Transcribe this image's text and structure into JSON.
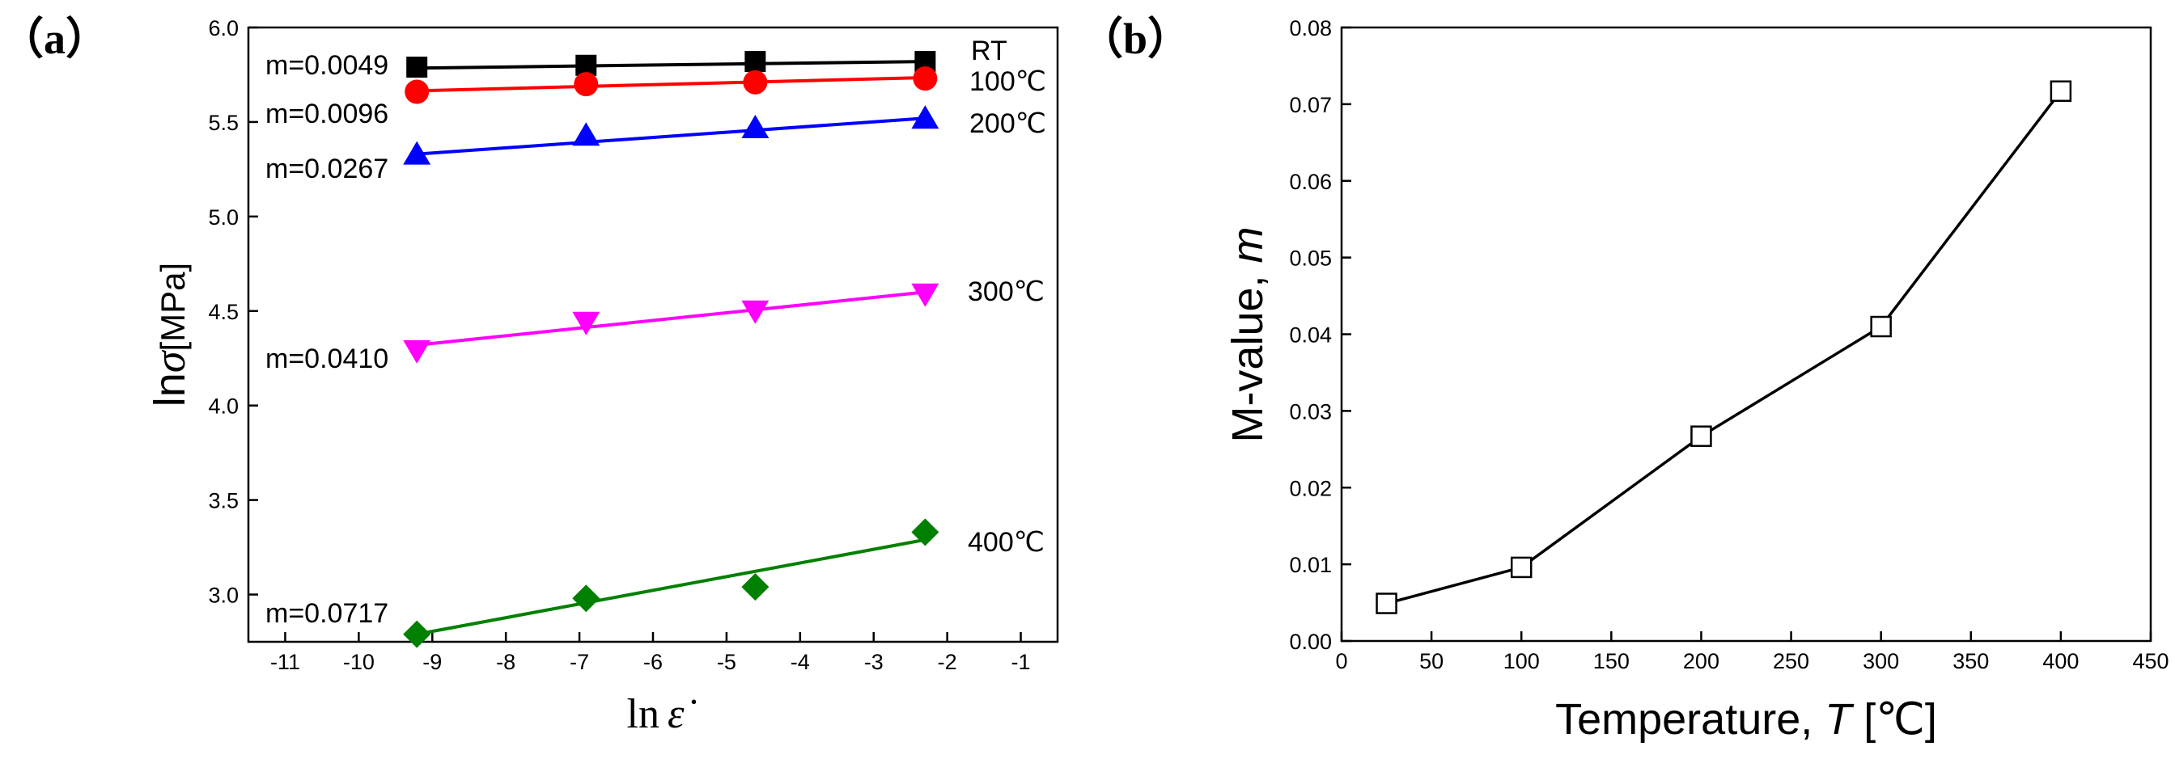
{
  "chart_data": [
    {
      "panel": "(a)",
      "type": "scatter",
      "xlabel": "ln ε̇",
      "ylabel": "lnσ[MPa]",
      "xlim": [
        -11.5,
        -0.5
      ],
      "ylim": [
        2.75,
        6.0
      ],
      "xticks": [
        -11,
        -10,
        -9,
        -8,
        -7,
        -6,
        -5,
        -4,
        -3,
        -2,
        -1
      ],
      "yticks": [
        3.0,
        3.5,
        4.0,
        4.5,
        5.0,
        5.5,
        6.0
      ],
      "x": [
        -9.21,
        -6.91,
        -4.61,
        -2.3
      ],
      "series": [
        {
          "name": "RT",
          "color": "#000000",
          "marker": "square",
          "m_label": "m=0.0049",
          "values": [
            5.79,
            5.8,
            5.82,
            5.82
          ],
          "fit": [
            5.785,
            5.82
          ]
        },
        {
          "name": "100℃",
          "color": "#ff0000",
          "marker": "circle",
          "m_label": "m=0.0096",
          "values": [
            5.66,
            5.7,
            5.71,
            5.73
          ],
          "fit": [
            5.665,
            5.735
          ]
        },
        {
          "name": "200℃",
          "color": "#0000ff",
          "marker": "triangle-up",
          "m_label": "m=0.0267",
          "values": [
            5.33,
            5.43,
            5.47,
            5.52
          ],
          "fit": [
            5.33,
            5.52
          ]
        },
        {
          "name": "300℃",
          "color": "#ff00ff",
          "marker": "triangle-down",
          "m_label": "m=0.0410",
          "values": [
            4.29,
            4.44,
            4.5,
            4.59
          ],
          "fit": [
            4.32,
            4.6
          ]
        },
        {
          "name": "400℃",
          "color": "#008000",
          "marker": "diamond",
          "m_label": "m=0.0717",
          "values": [
            2.79,
            2.98,
            3.04,
            3.33
          ],
          "fit": [
            2.79,
            3.29
          ]
        }
      ]
    },
    {
      "panel": "(b)",
      "type": "line",
      "xlabel": "Temperature, T [℃]",
      "ylabel": "M-value, m",
      "xlim": [
        0,
        450
      ],
      "ylim": [
        0.0,
        0.08
      ],
      "xticks": [
        0,
        50,
        100,
        150,
        200,
        250,
        300,
        350,
        400,
        450
      ],
      "yticks": [
        "0.00",
        "0.01",
        "0.02",
        "0.03",
        "0.04",
        "0.05",
        "0.06",
        "0.07",
        "0.08"
      ],
      "x": [
        25,
        100,
        200,
        300,
        400
      ],
      "values": [
        0.0049,
        0.0096,
        0.0267,
        0.041,
        0.0717
      ]
    }
  ],
  "labels": {
    "panel_a": "（a）",
    "panel_b": "（b）",
    "a_ylabel_ln": "ln",
    "a_ylabel_sigma": "σ",
    "a_ylabel_unit": "[MPa]",
    "a_xlabel_ln": "ln",
    "a_xlabel_eps": "ε̇",
    "b_ylabel": "M-value, ",
    "b_ylabel_italic": "m",
    "b_xlabel": "Temperature, ",
    "b_xlabel_italic": "T",
    "b_xlabel_unit": " [℃]"
  }
}
